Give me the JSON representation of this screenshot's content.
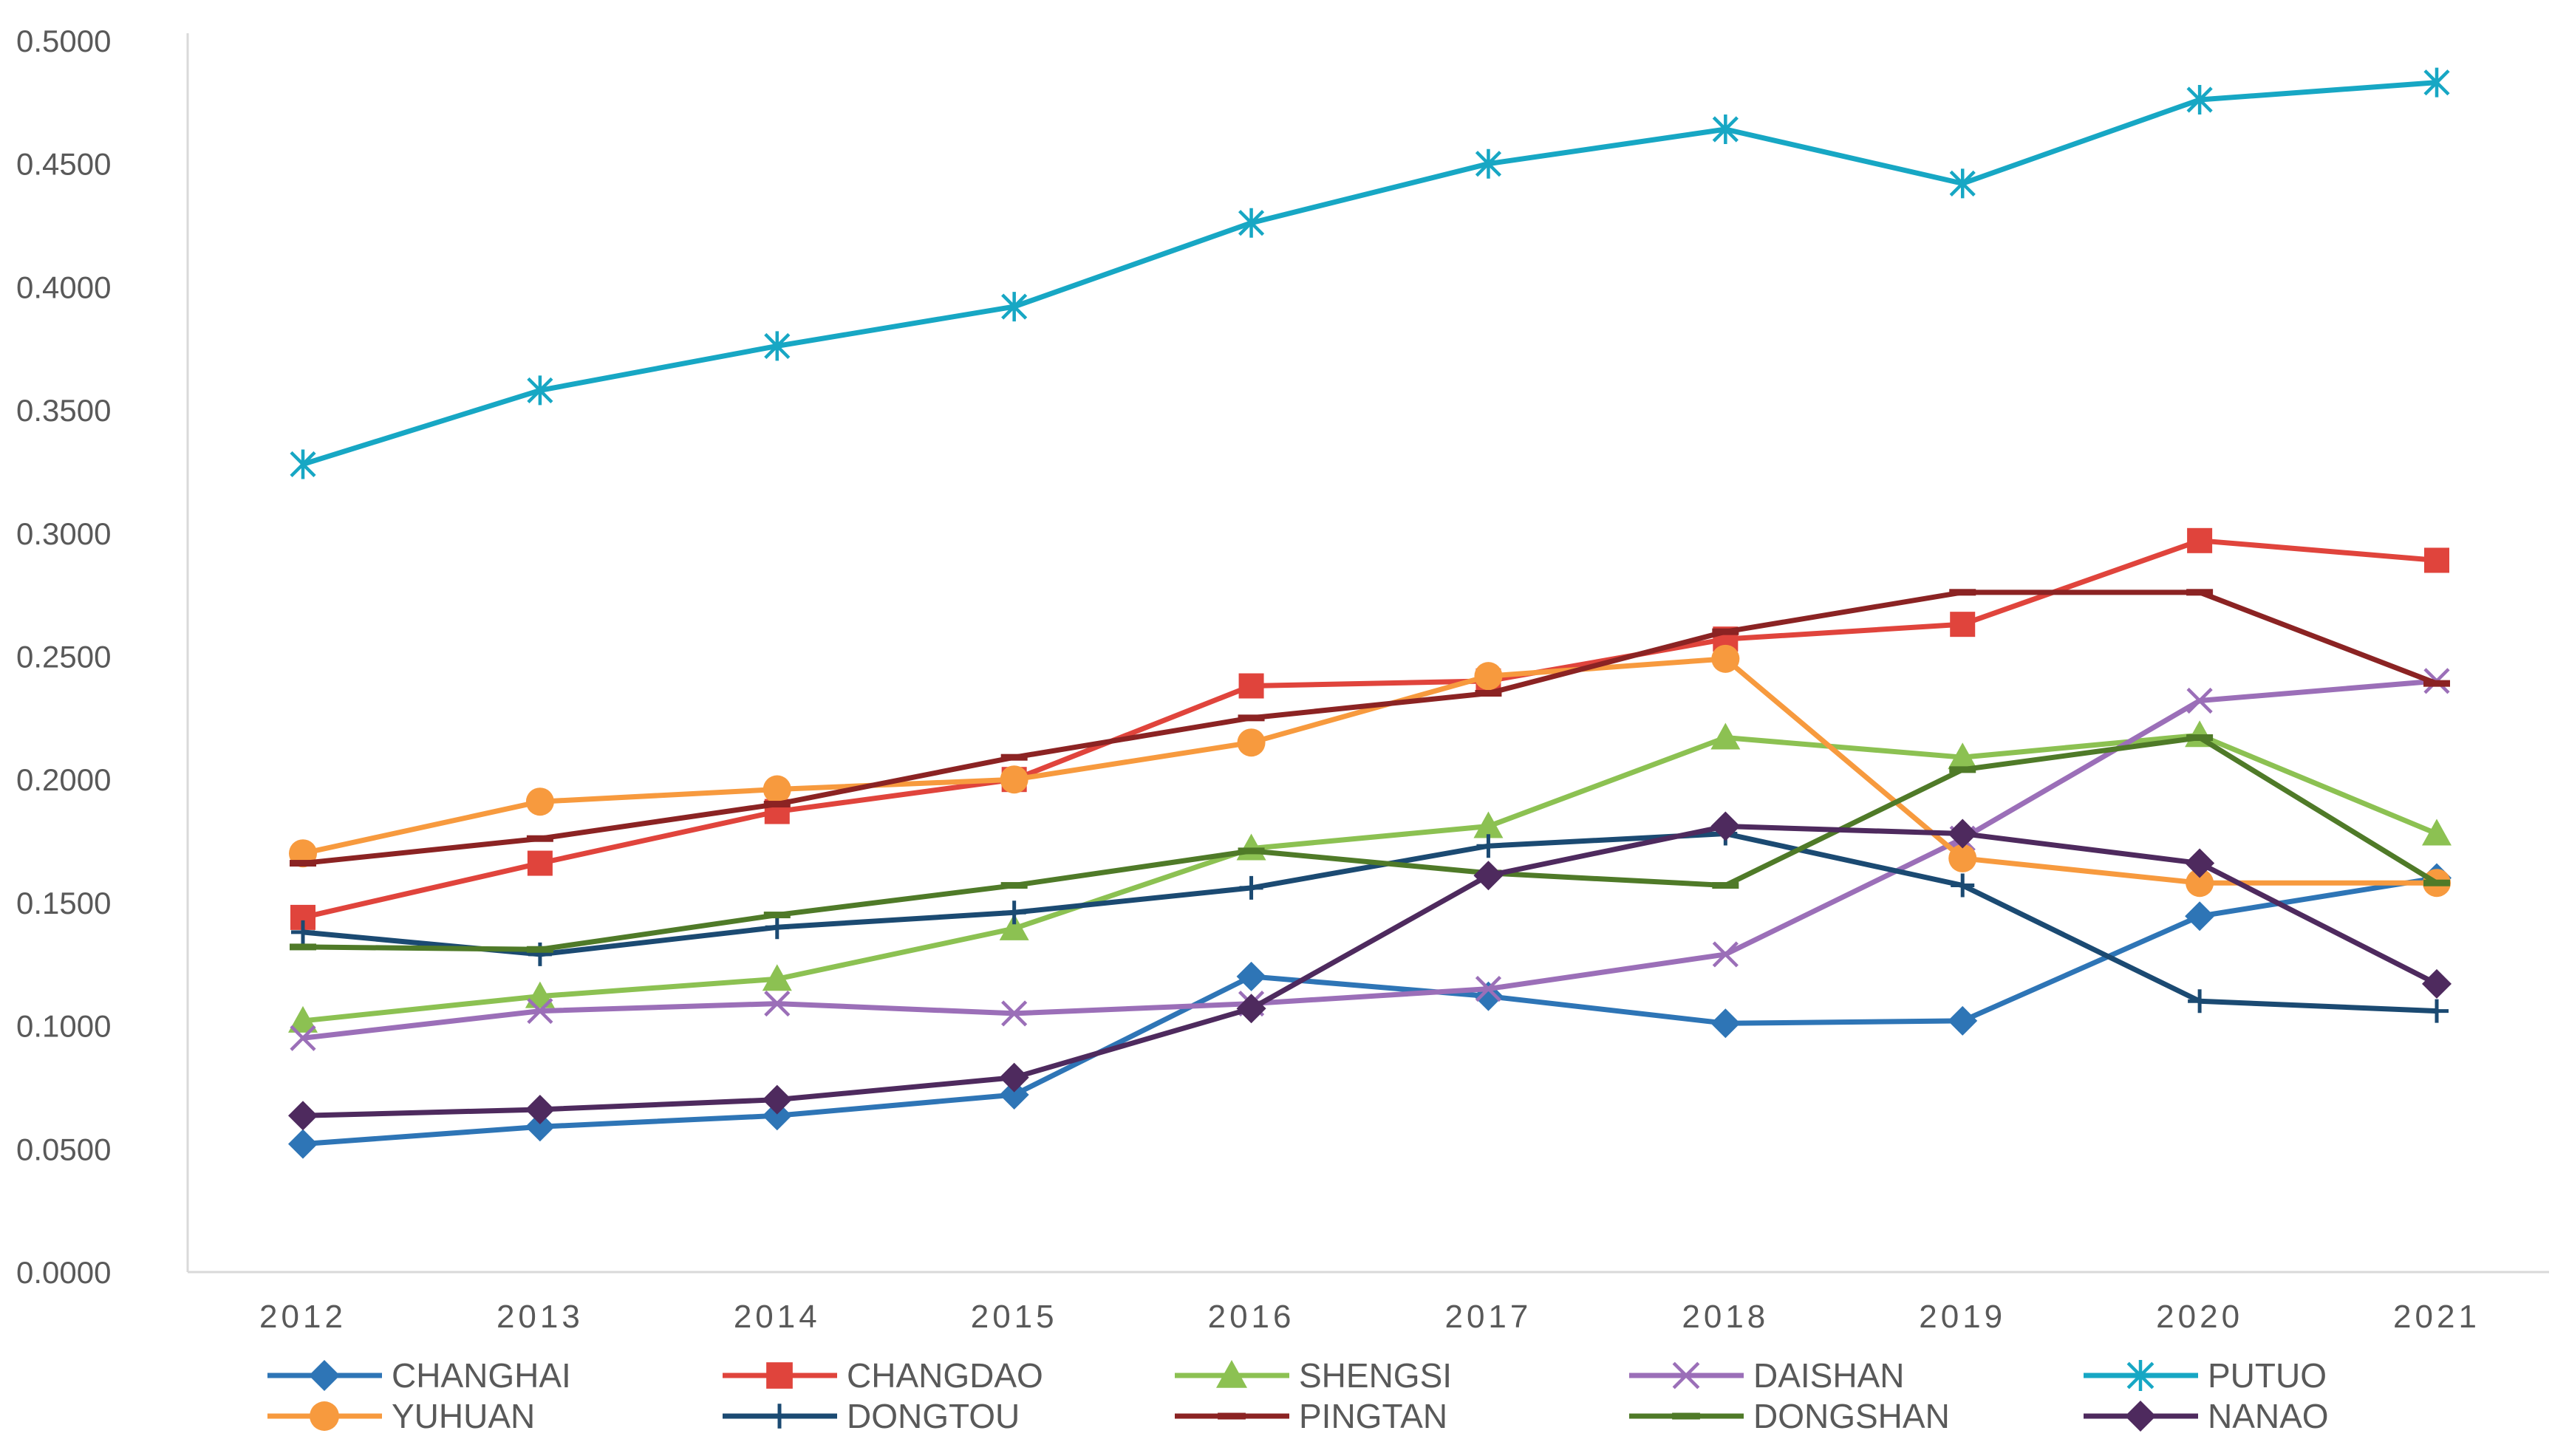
{
  "chart_data": {
    "type": "line",
    "title": "",
    "xlabel": "",
    "ylabel": "",
    "ylim": [
      0,
      0.5
    ],
    "yticks": [
      "0.0000",
      "0.0500",
      "0.1000",
      "0.1500",
      "0.2000",
      "0.2500",
      "0.3000",
      "0.3500",
      "0.4000",
      "0.4500",
      "0.5000"
    ],
    "x": [
      "2012",
      "2013",
      "2014",
      "2015",
      "2016",
      "2017",
      "2018",
      "2019",
      "2020",
      "2021"
    ],
    "grid": false,
    "legend_position": "bottom",
    "series": [
      {
        "name": "CHANGHAI",
        "color": "#2E75B6",
        "marker": "diamond",
        "values": [
          0.052,
          0.059,
          0.0635,
          0.072,
          0.12,
          0.112,
          0.101,
          0.102,
          0.1445,
          0.16
        ]
      },
      {
        "name": "CHANGDAO",
        "color": "#E0443C",
        "marker": "square",
        "values": [
          0.144,
          0.166,
          0.187,
          0.2,
          0.238,
          0.24,
          0.257,
          0.263,
          0.297,
          0.289
        ]
      },
      {
        "name": "SHENGSI",
        "color": "#8CC152",
        "marker": "triangle",
        "values": [
          0.102,
          0.112,
          0.119,
          0.1395,
          0.172,
          0.181,
          0.217,
          0.209,
          0.218,
          0.178
        ]
      },
      {
        "name": "DAISHAN",
        "color": "#9B6FB8",
        "marker": "x",
        "values": [
          0.095,
          0.106,
          0.109,
          0.105,
          0.109,
          0.115,
          0.129,
          0.176,
          0.232,
          0.24
        ]
      },
      {
        "name": "PUTUO",
        "color": "#17A7C4",
        "marker": "star",
        "values": [
          0.328,
          0.358,
          0.376,
          0.392,
          0.426,
          0.45,
          0.464,
          0.442,
          0.476,
          0.483
        ]
      },
      {
        "name": "YUHUAN",
        "color": "#F79A3E",
        "marker": "circle",
        "values": [
          0.17,
          0.191,
          0.196,
          0.2,
          0.215,
          0.242,
          0.249,
          0.168,
          0.158,
          0.158
        ]
      },
      {
        "name": "DONGTOU",
        "color": "#1B4A72",
        "marker": "plus",
        "values": [
          0.138,
          0.129,
          0.14,
          0.146,
          0.156,
          0.173,
          0.178,
          0.157,
          0.11,
          0.106
        ]
      },
      {
        "name": "PINGTAN",
        "color": "#8B2323",
        "marker": "dash",
        "values": [
          0.166,
          0.176,
          0.19,
          0.209,
          0.225,
          0.235,
          0.26,
          0.276,
          0.276,
          0.239
        ]
      },
      {
        "name": "DONGSHAN",
        "color": "#4F7A28",
        "marker": "dash",
        "values": [
          0.132,
          0.131,
          0.145,
          0.157,
          0.171,
          0.162,
          0.157,
          0.204,
          0.217,
          0.158
        ]
      },
      {
        "name": "NANAO",
        "color": "#4E2A5E",
        "marker": "diamond",
        "values": [
          0.0635,
          0.066,
          0.07,
          0.079,
          0.107,
          0.161,
          0.181,
          0.178,
          0.166,
          0.117
        ]
      }
    ]
  }
}
